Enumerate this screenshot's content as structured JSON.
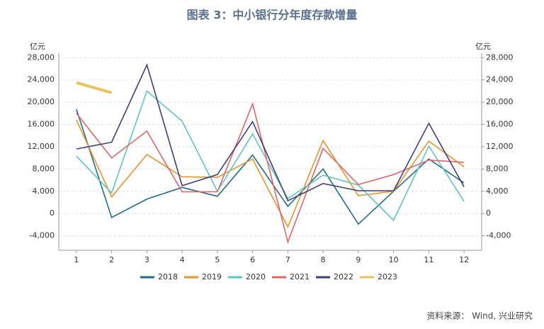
{
  "chart_data": {
    "type": "line",
    "title": "图表 3：中小银行分年度存款增量",
    "y_unit": "亿元",
    "y2_unit": "亿元",
    "source": "资料来源： Wind, 兴业研究",
    "categories": [
      "1",
      "2",
      "3",
      "4",
      "5",
      "6",
      "7",
      "8",
      "9",
      "10",
      "11",
      "12"
    ],
    "series": [
      {
        "name": "2018",
        "color": "#1f6e8c",
        "values": [
          18700,
          -700,
          2600,
          4700,
          3100,
          10500,
          1300,
          8000,
          -1900,
          4000,
          9800,
          5500
        ]
      },
      {
        "name": "2019",
        "color": "#e8922b",
        "values": [
          16800,
          3000,
          10600,
          6600,
          6500,
          9800,
          -2400,
          13100,
          3200,
          4000,
          13000,
          8400
        ]
      },
      {
        "name": "2020",
        "color": "#5fc4c4",
        "values": [
          10300,
          3700,
          22000,
          16600,
          4000,
          14300,
          2700,
          6900,
          5100,
          -1200,
          12100,
          2200
        ]
      },
      {
        "name": "2021",
        "color": "#e06666",
        "values": [
          18000,
          10000,
          14800,
          3900,
          3900,
          19700,
          -5100,
          11700,
          5200,
          7000,
          9600,
          9200
        ]
      },
      {
        "name": "2022",
        "color": "#3c3f7a",
        "values": [
          11600,
          12800,
          26700,
          5000,
          7000,
          16500,
          2300,
          5400,
          4100,
          4100,
          16200,
          4800
        ]
      },
      {
        "name": "2023",
        "color": "#e8c35a",
        "values": [
          23500,
          21700,
          null,
          null,
          null,
          null,
          null,
          null,
          null,
          null,
          null,
          null
        ]
      }
    ],
    "ylim": [
      -6600,
      28800
    ],
    "yticks": [
      {
        "value": -4000,
        "label": "-4,000"
      },
      0,
      {
        "value": 4000,
        "label": "4,000"
      },
      {
        "value": 8000,
        "label": "8,000"
      },
      {
        "value": 12000,
        "label": "12,000"
      },
      {
        "value": 16000,
        "label": "16,000"
      },
      {
        "value": 20000,
        "label": "20,000"
      },
      {
        "value": 24000,
        "label": "24,000"
      },
      {
        "value": 28000,
        "label": "28,000"
      }
    ],
    "y2lim": [
      -6600,
      28800
    ],
    "y2ticks": [
      {
        "value": -4000,
        "label": "-4,000"
      },
      0,
      {
        "value": 4000,
        "label": "4,000"
      },
      {
        "value": 8000,
        "label": "8,000"
      },
      {
        "value": 12000,
        "label": "12,000"
      },
      {
        "value": 16000,
        "label": "16,000"
      },
      {
        "value": 20000,
        "label": "20,000"
      },
      {
        "value": 24000,
        "label": "24,000"
      },
      {
        "value": 28000,
        "label": "28,000"
      }
    ],
    "grid": true,
    "legend": "bottom"
  }
}
